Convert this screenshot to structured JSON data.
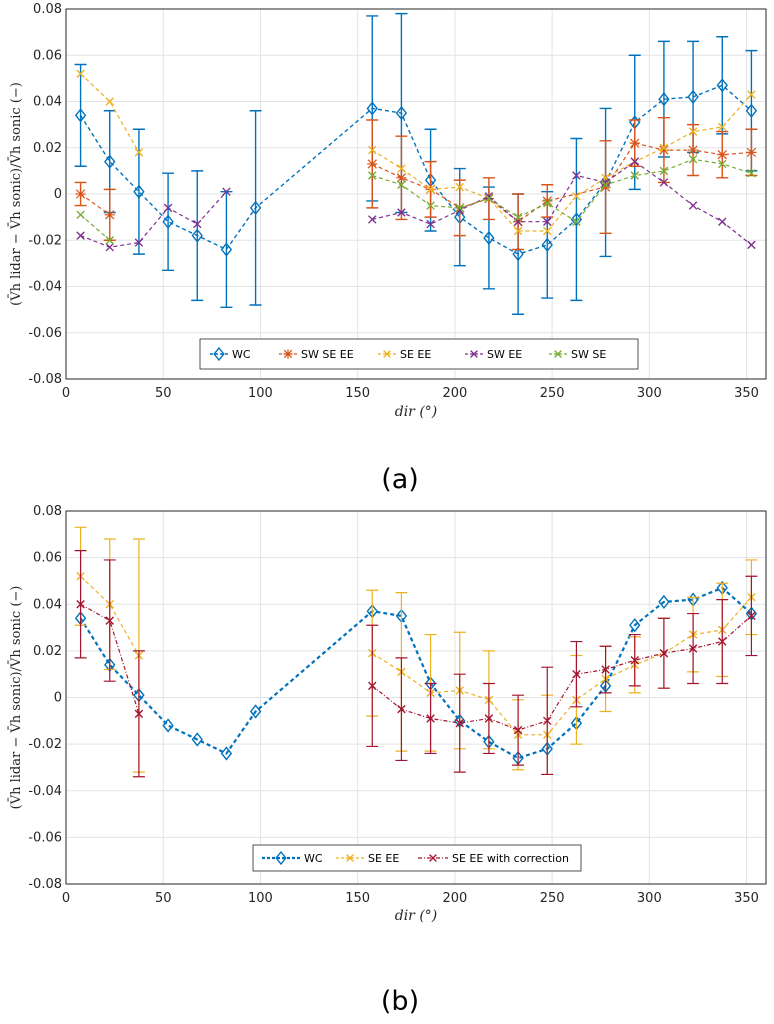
{
  "colors": {
    "WC": "#0072bd",
    "SW SE EE": "#d95319",
    "SE EE": "#edb120",
    "SW EE": "#7e2f8e",
    "SW SE": "#77ac30",
    "SE EE with correction": "#a2142f"
  },
  "chart_data": [
    {
      "type": "line",
      "caption": "(a)",
      "xlabel": "dir (°)",
      "ylabel": "(V̄h lidar − V̄h sonic)/V̄h sonic (−)",
      "xlim": [
        0,
        360
      ],
      "ylim": [
        -0.08,
        0.08
      ],
      "xticks": [
        "0",
        "50",
        "100",
        "150",
        "200",
        "250",
        "300",
        "350"
      ],
      "yticks": [
        "-0.08",
        "-0.06",
        "-0.04",
        "-0.02",
        "0",
        "0.02",
        "0.04",
        "0.06",
        "0.08"
      ],
      "grid": true,
      "legend": "bottom-center",
      "series": [
        {
          "name": "WC",
          "marker": "diamond",
          "x": [
            7.5,
            22.5,
            37.5,
            52.5,
            67.5,
            82.5,
            97.5,
            157.5,
            172.5,
            187.5,
            202.5,
            217.5,
            232.5,
            247.5,
            262.5,
            277.5,
            292.5,
            307.5,
            322.5,
            337.5,
            352.5
          ],
          "values": [
            0.034,
            0.014,
            0.001,
            -0.012,
            -0.018,
            -0.024,
            -0.006,
            0.037,
            0.035,
            0.006,
            -0.01,
            -0.019,
            -0.026,
            -0.022,
            -0.011,
            0.005,
            0.031,
            0.041,
            0.042,
            0.047,
            0.036
          ],
          "err": [
            0.022,
            0.022,
            0.027,
            0.021,
            0.028,
            0.025,
            0.042,
            0.04,
            0.043,
            0.022,
            0.021,
            0.022,
            0.026,
            0.023,
            0.035,
            0.032,
            0.029,
            0.025,
            0.024,
            0.021,
            0.026
          ]
        },
        {
          "name": "SW SE EE",
          "marker": "asterisk",
          "x": [
            7.5,
            22.5,
            157.5,
            172.5,
            187.5,
            202.5,
            217.5,
            232.5,
            247.5,
            277.5,
            292.5,
            307.5,
            322.5,
            337.5,
            352.5
          ],
          "values": [
            0.0,
            -0.009,
            0.013,
            0.007,
            0.002,
            -0.006,
            -0.002,
            -0.012,
            -0.003,
            0.003,
            0.022,
            0.019,
            0.019,
            0.017,
            0.018
          ],
          "err": [
            0.005,
            0.011,
            0.019,
            0.018,
            0.012,
            0.012,
            0.009,
            0.012,
            0.007,
            0.02,
            0.01,
            0.014,
            0.011,
            0.01,
            0.01
          ]
        },
        {
          "name": "SE EE",
          "marker": "x",
          "x": [
            7.5,
            22.5,
            37.5,
            157.5,
            172.5,
            187.5,
            202.5,
            217.5,
            232.5,
            247.5,
            262.5,
            277.5,
            292.5,
            307.5,
            322.5,
            337.5,
            352.5
          ],
          "values": [
            0.052,
            0.04,
            0.018,
            0.019,
            0.011,
            0.002,
            0.003,
            -0.002,
            -0.016,
            -0.016,
            -0.001,
            0.007,
            0.014,
            0.02,
            0.027,
            0.029,
            0.043
          ]
        },
        {
          "name": "SW EE",
          "marker": "x",
          "x": [
            7.5,
            22.5,
            37.5,
            52.5,
            67.5,
            82.5,
            157.5,
            172.5,
            187.5,
            202.5,
            217.5,
            232.5,
            247.5,
            262.5,
            277.5,
            292.5,
            307.5,
            322.5,
            337.5,
            352.5
          ],
          "values": [
            -0.018,
            -0.023,
            -0.021,
            -0.006,
            -0.013,
            0.001,
            -0.011,
            -0.008,
            -0.013,
            -0.007,
            -0.001,
            -0.012,
            -0.012,
            0.008,
            0.005,
            0.014,
            0.005,
            -0.005,
            -0.012,
            -0.022
          ]
        },
        {
          "name": "SW SE",
          "marker": "x",
          "x": [
            7.5,
            22.5,
            157.5,
            172.5,
            187.5,
            202.5,
            217.5,
            232.5,
            247.5,
            262.5,
            277.5,
            292.5,
            307.5,
            322.5,
            337.5,
            352.5
          ],
          "values": [
            -0.009,
            -0.02,
            0.008,
            0.004,
            -0.005,
            -0.006,
            -0.002,
            -0.01,
            -0.004,
            -0.012,
            0.004,
            0.008,
            0.01,
            0.015,
            0.013,
            0.009
          ]
        }
      ]
    },
    {
      "type": "line",
      "caption": "(b)",
      "xlabel": "dir (°)",
      "ylabel": "(V̄h lidar − V̄h sonic)/V̄h sonic (−)",
      "xlim": [
        0,
        360
      ],
      "ylim": [
        -0.08,
        0.08
      ],
      "xticks": [
        "0",
        "50",
        "100",
        "150",
        "200",
        "250",
        "300",
        "350"
      ],
      "yticks": [
        "-0.08",
        "-0.06",
        "-0.04",
        "-0.02",
        "0",
        "0.02",
        "0.04",
        "0.06",
        "0.08"
      ],
      "grid": true,
      "legend": "bottom-center",
      "series": [
        {
          "name": "WC",
          "marker": "diamond",
          "x": [
            7.5,
            22.5,
            37.5,
            52.5,
            67.5,
            82.5,
            97.5,
            157.5,
            172.5,
            187.5,
            202.5,
            217.5,
            232.5,
            247.5,
            262.5,
            277.5,
            292.5,
            307.5,
            322.5,
            337.5,
            352.5
          ],
          "values": [
            0.034,
            0.014,
            0.001,
            -0.012,
            -0.018,
            -0.024,
            -0.006,
            0.037,
            0.035,
            0.006,
            -0.01,
            -0.019,
            -0.026,
            -0.022,
            -0.011,
            0.005,
            0.031,
            0.041,
            0.042,
            0.047,
            0.036
          ]
        },
        {
          "name": "SE EE",
          "marker": "x",
          "x": [
            7.5,
            22.5,
            37.5,
            157.5,
            172.5,
            187.5,
            202.5,
            217.5,
            232.5,
            247.5,
            262.5,
            277.5,
            292.5,
            307.5,
            322.5,
            337.5,
            352.5
          ],
          "values": [
            0.052,
            0.04,
            0.018,
            0.019,
            0.011,
            0.002,
            0.003,
            -0.001,
            -0.016,
            -0.016,
            -0.001,
            0.008,
            0.014,
            0.019,
            0.027,
            0.029,
            0.043
          ],
          "err": [
            0.021,
            0.028,
            0.05,
            0.027,
            0.034,
            0.025,
            0.025,
            0.021,
            0.015,
            0.017,
            0.019,
            0.014,
            0.012,
            0.015,
            0.016,
            0.02,
            0.016
          ]
        },
        {
          "name": "SE EE with correction",
          "marker": "x",
          "x": [
            7.5,
            22.5,
            37.5,
            157.5,
            172.5,
            187.5,
            202.5,
            217.5,
            232.5,
            247.5,
            262.5,
            277.5,
            292.5,
            307.5,
            322.5,
            337.5,
            352.5
          ],
          "values": [
            0.04,
            0.033,
            -0.007,
            0.005,
            -0.005,
            -0.009,
            -0.011,
            -0.009,
            -0.014,
            -0.01,
            0.01,
            0.012,
            0.016,
            0.019,
            0.021,
            0.024,
            0.035
          ],
          "err": [
            0.023,
            0.026,
            0.027,
            0.026,
            0.022,
            0.015,
            0.021,
            0.015,
            0.015,
            0.023,
            0.014,
            0.01,
            0.011,
            0.015,
            0.015,
            0.018,
            0.017
          ]
        }
      ]
    }
  ]
}
